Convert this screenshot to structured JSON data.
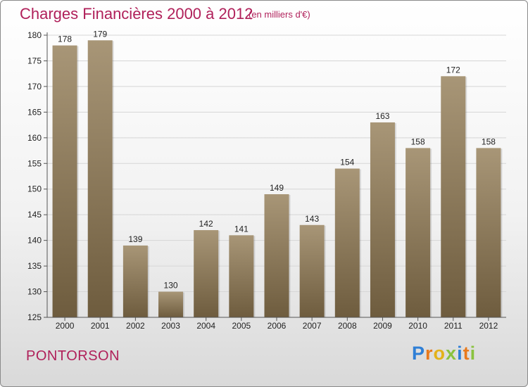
{
  "header": {
    "title": "Charges Financières 2000 à 2012",
    "subtitle": "(en milliers d'€)"
  },
  "footer": {
    "place": "PONTORSON",
    "logo": {
      "letters": [
        {
          "ch": "P",
          "color": "#2f7fd6"
        },
        {
          "ch": "r",
          "color": "#e8791c"
        },
        {
          "ch": "o",
          "color": "#e3b21a"
        },
        {
          "ch": "x",
          "color": "#8ac23f"
        },
        {
          "ch": "i",
          "color": "#2f7fd6"
        },
        {
          "ch": "t",
          "color": "#e8791c"
        },
        {
          "ch": "i",
          "color": "#8ac23f"
        }
      ]
    }
  },
  "chart_data": {
    "type": "bar",
    "title": "Charges Financières 2000 à 2012",
    "subtitle": "(en milliers d'€)",
    "categories": [
      "2000",
      "2001",
      "2002",
      "2003",
      "2004",
      "2005",
      "2006",
      "2007",
      "2008",
      "2009",
      "2010",
      "2011",
      "2012"
    ],
    "values": [
      178,
      179,
      139,
      130,
      142,
      141,
      149,
      143,
      154,
      163,
      158,
      172,
      158
    ],
    "ylim": [
      125,
      180
    ],
    "yticks": [
      125,
      130,
      135,
      140,
      145,
      150,
      155,
      160,
      165,
      170,
      175,
      180
    ],
    "grid": true,
    "bar_color_top": "#a89677",
    "bar_color_bottom": "#6e5c3e"
  }
}
